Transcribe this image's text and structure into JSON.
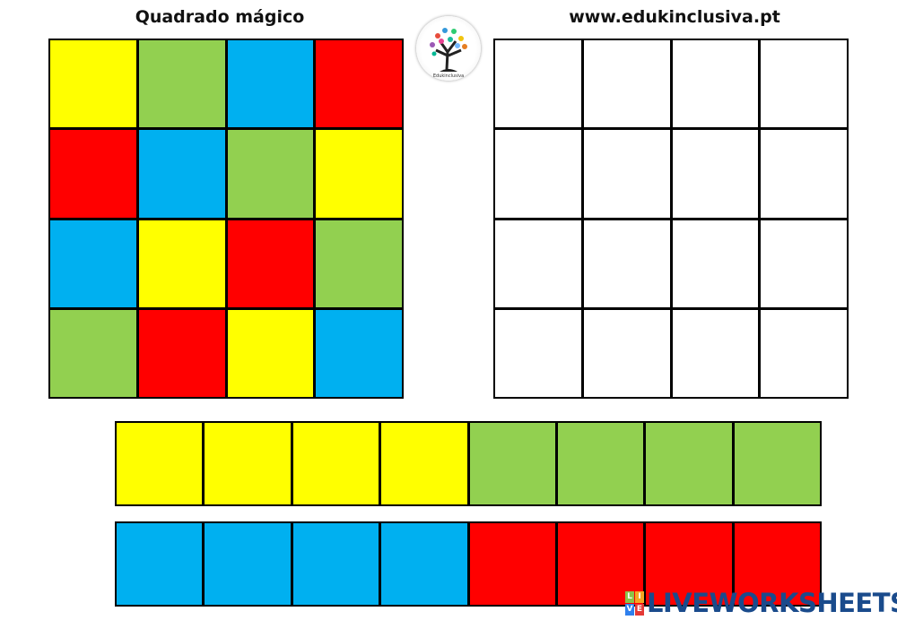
{
  "header": {
    "left_title": "Quadrado mágico",
    "right_title": "www.edukinclusiva.pt"
  },
  "colors": {
    "Y": "#FFFF00",
    "G": "#92D050",
    "B": "#00B0F0",
    "R": "#FF0000",
    "W": "#FFFFFF"
  },
  "magic_square": [
    [
      "Y",
      "G",
      "B",
      "R"
    ],
    [
      "R",
      "B",
      "G",
      "Y"
    ],
    [
      "B",
      "Y",
      "R",
      "G"
    ],
    [
      "G",
      "R",
      "Y",
      "B"
    ]
  ],
  "empty_square": [
    [
      "W",
      "W",
      "W",
      "W"
    ],
    [
      "W",
      "W",
      "W",
      "W"
    ],
    [
      "W",
      "W",
      "W",
      "W"
    ],
    [
      "W",
      "W",
      "W",
      "W"
    ]
  ],
  "strip_top": [
    "Y",
    "Y",
    "Y",
    "Y",
    "G",
    "G",
    "G",
    "G"
  ],
  "strip_bottom": [
    "B",
    "B",
    "B",
    "B",
    "R",
    "R",
    "R",
    "R"
  ],
  "logo": {
    "icon": "tree-logo-icon",
    "text": "Edukinclusiva"
  },
  "watermark": {
    "letters": [
      "L",
      "I",
      "V",
      "E"
    ],
    "text": "LIVEWORKSHEETS"
  }
}
